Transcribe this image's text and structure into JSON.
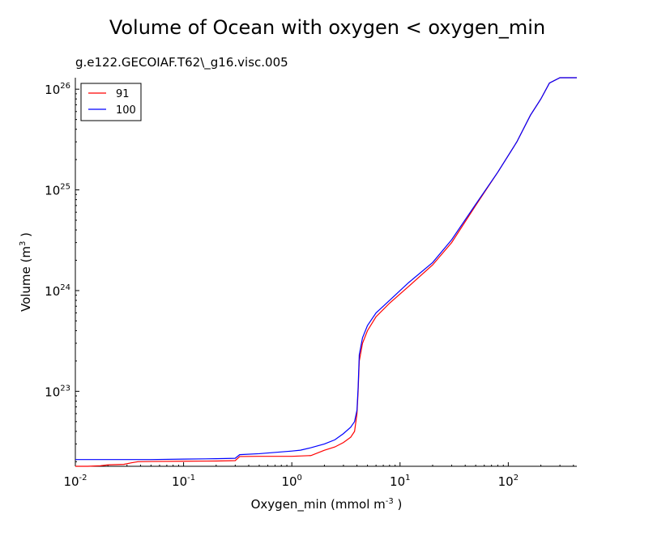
{
  "chart_data": {
    "type": "line",
    "title": "Volume of Ocean with oxygen < oxygen_min",
    "subtitle": "g.e122.GECOIAF.T62\\_g16.visc.005",
    "xlabel": {
      "text": "Oxygen_min (mmol m",
      "sup": "-3",
      "suffix": " )"
    },
    "ylabel": {
      "text": "Volume (m",
      "sup": "3",
      "suffix": " )"
    },
    "x_scale": "log",
    "y_scale": "log",
    "xlim": [
      0.01,
      430
    ],
    "ylim": [
      1.8e+22,
      1.3e+26
    ],
    "x_ticks": [
      {
        "value": 0.01,
        "base": "10",
        "exp": "-2"
      },
      {
        "value": 0.1,
        "base": "10",
        "exp": "-1"
      },
      {
        "value": 1,
        "base": "10",
        "exp": "0"
      },
      {
        "value": 10,
        "base": "10",
        "exp": "1"
      },
      {
        "value": 100,
        "base": "10",
        "exp": "2"
      }
    ],
    "y_ticks": [
      {
        "value": 1e+23,
        "base": "10",
        "exp": "23"
      },
      {
        "value": 1e+24,
        "base": "10",
        "exp": "24"
      },
      {
        "value": 1e+25,
        "base": "10",
        "exp": "25"
      },
      {
        "value": 1e+26,
        "base": "10",
        "exp": "26"
      }
    ],
    "grid": false,
    "legend": {
      "placement": "top-left"
    },
    "series": [
      {
        "name": "91",
        "color": "#ff0000",
        "points": [
          [
            0.01,
            1.8e+22
          ],
          [
            0.013,
            1.8e+22
          ],
          [
            0.017,
            1.82e+22
          ],
          [
            0.02,
            1.86e+22
          ],
          [
            0.028,
            1.88e+22
          ],
          [
            0.033,
            1.95e+22
          ],
          [
            0.038,
            2e+22
          ],
          [
            0.05,
            2.01e+22
          ],
          [
            0.1,
            2.02e+22
          ],
          [
            0.2,
            2.03e+22
          ],
          [
            0.3,
            2.05e+22
          ],
          [
            0.33,
            2.25e+22
          ],
          [
            0.5,
            2.26e+22
          ],
          [
            1.0,
            2.26e+22
          ],
          [
            1.5,
            2.3e+22
          ],
          [
            2.0,
            2.6e+22
          ],
          [
            2.5,
            2.8e+22
          ],
          [
            3.0,
            3.1e+22
          ],
          [
            3.5,
            3.5e+22
          ],
          [
            3.8,
            4e+22
          ],
          [
            4.0,
            6e+22
          ],
          [
            4.1,
            1e+23
          ],
          [
            4.2,
            2e+23
          ],
          [
            4.5,
            3e+23
          ],
          [
            5.0,
            4e+23
          ],
          [
            6.0,
            5.5e+23
          ],
          [
            8.0,
            7.5e+23
          ],
          [
            12.0,
            1.1e+24
          ],
          [
            20.0,
            1.8e+24
          ],
          [
            30.0,
            3e+24
          ],
          [
            50.0,
            7e+24
          ],
          [
            80.0,
            1.5e+25
          ],
          [
            120.0,
            3e+25
          ],
          [
            160.0,
            5.5e+25
          ],
          [
            200.0,
            8e+25
          ],
          [
            240.0,
            1.15e+26
          ],
          [
            300.0,
            1.3e+26
          ],
          [
            430.0,
            1.3e+26
          ]
        ]
      },
      {
        "name": "100",
        "color": "#0000ff",
        "points": [
          [
            0.01,
            2.1e+22
          ],
          [
            0.05,
            2.1e+22
          ],
          [
            0.1,
            2.12e+22
          ],
          [
            0.2,
            2.14e+22
          ],
          [
            0.3,
            2.16e+22
          ],
          [
            0.33,
            2.35e+22
          ],
          [
            0.5,
            2.4e+22
          ],
          [
            1.0,
            2.55e+22
          ],
          [
            1.2,
            2.6e+22
          ],
          [
            1.5,
            2.75e+22
          ],
          [
            2.0,
            3e+22
          ],
          [
            2.5,
            3.3e+22
          ],
          [
            3.0,
            3.8e+22
          ],
          [
            3.5,
            4.4e+22
          ],
          [
            3.8,
            5e+22
          ],
          [
            4.0,
            6.5e+22
          ],
          [
            4.1,
            1.1e+23
          ],
          [
            4.2,
            2.3e+23
          ],
          [
            4.5,
            3.4e+23
          ],
          [
            5.0,
            4.5e+23
          ],
          [
            6.0,
            6e+23
          ],
          [
            8.0,
            8e+23
          ],
          [
            12.0,
            1.2e+24
          ],
          [
            20.0,
            1.9e+24
          ],
          [
            30.0,
            3.2e+24
          ],
          [
            50.0,
            7.2e+24
          ],
          [
            80.0,
            1.5e+25
          ],
          [
            120.0,
            3e+25
          ],
          [
            160.0,
            5.5e+25
          ],
          [
            200.0,
            8e+25
          ],
          [
            240.0,
            1.15e+26
          ],
          [
            300.0,
            1.3e+26
          ],
          [
            430.0,
            1.3e+26
          ]
        ]
      }
    ]
  }
}
